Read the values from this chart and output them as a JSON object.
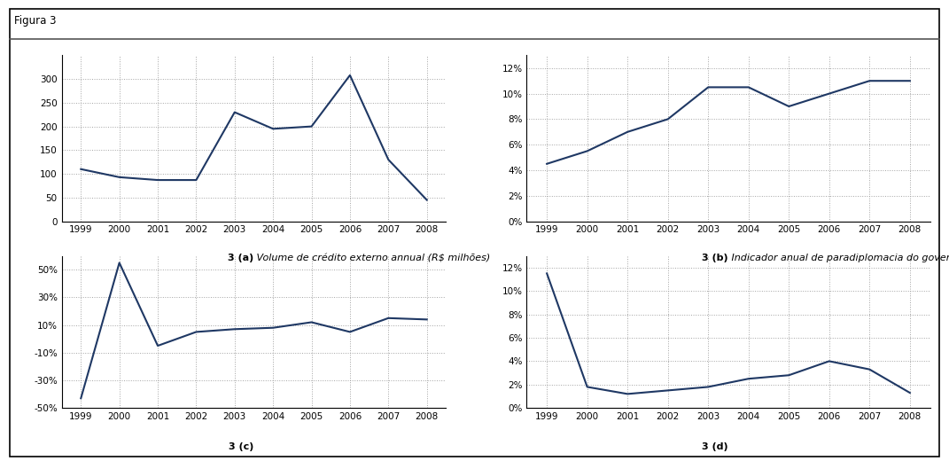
{
  "years": [
    1999,
    2000,
    2001,
    2002,
    2003,
    2004,
    2005,
    2006,
    2007,
    2008
  ],
  "series_a": [
    110,
    93,
    87,
    87,
    230,
    195,
    200,
    308,
    130,
    45
  ],
  "series_b": [
    0.045,
    0.055,
    0.07,
    0.08,
    0.105,
    0.105,
    0.09,
    0.1,
    0.11,
    0.11
  ],
  "series_c": [
    -0.43,
    0.55,
    -0.05,
    0.05,
    0.07,
    0.08,
    0.12,
    0.05,
    0.15,
    0.14
  ],
  "series_d": [
    0.115,
    0.018,
    0.012,
    0.015,
    0.018,
    0.025,
    0.028,
    0.04,
    0.033,
    0.013
  ],
  "line_color": "#1F3864",
  "grid_color": "#999999",
  "bg_color": "#ffffff",
  "plot_bg": "#ffffff",
  "header_text": "Figura 3",
  "label_a_bold": "3 (a)",
  "label_a_regular": " Volume de crédito externo annual (R$ milhões)",
  "label_b_bold": "3 (b)",
  "label_b_regular": " Indicador anual de paradiplomacia do governo estadual (%)",
  "label_c_bold": "3 (c)",
  "label_c_regular": "",
  "label_d_bold": "3 (d)",
  "label_d_regular": "",
  "ylim_a": [
    0,
    350
  ],
  "yticks_a": [
    0,
    50,
    100,
    150,
    200,
    250,
    300
  ],
  "ylim_b": [
    0,
    0.13
  ],
  "yticks_b": [
    0.0,
    0.02,
    0.04,
    0.06,
    0.08,
    0.1,
    0.12
  ],
  "ylim_c": [
    -0.5,
    0.6
  ],
  "yticks_c": [
    -0.5,
    -0.3,
    -0.1,
    0.1,
    0.3,
    0.5
  ],
  "ylim_d": [
    0,
    0.13
  ],
  "yticks_d": [
    0.0,
    0.02,
    0.04,
    0.06,
    0.08,
    0.1,
    0.12
  ]
}
